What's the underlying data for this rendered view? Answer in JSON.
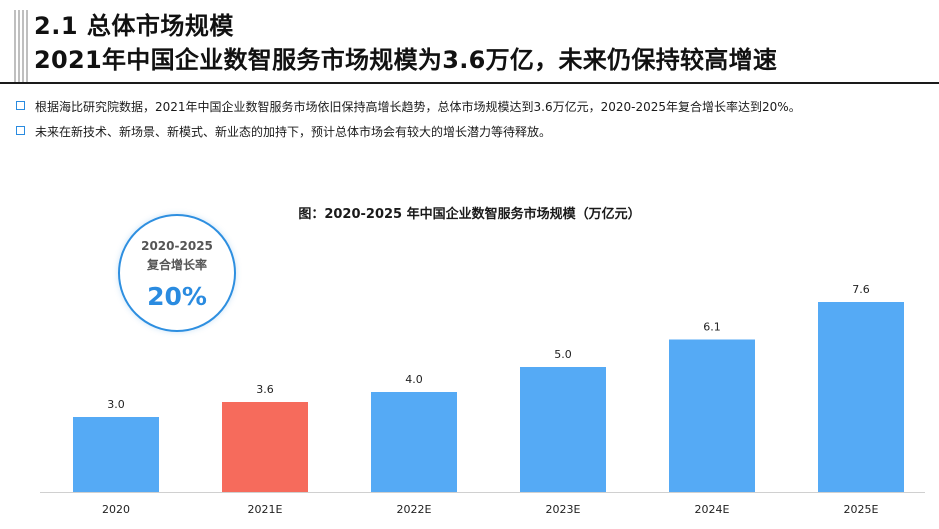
{
  "header": {
    "section_title": "2.1 总体市场规模",
    "headline": "2021年中国企业数智服务市场规模为3.6万亿，未来仍保持较高增速"
  },
  "bullets": [
    "根据海比研究院数据，2021年中国企业数智服务市场依旧保持高增长趋势，总体市场规模达到3.6万亿元，2020-2025年复合增长率达到20%。",
    "未来在新技术、新场景、新模式、新业态的加持下，预计总体市场会有较大的增长潜力等待释放。"
  ],
  "cagr": {
    "label_line1": "2020-2025",
    "label_line2": "复合增长率",
    "value": "20%"
  },
  "colors": {
    "bar_default": "#55AAF5",
    "bar_highlight": "#F66B5C",
    "accent": "#2A8BE0"
  },
  "chart_data": {
    "type": "bar",
    "title": "图：2020-2025 年中国企业数智服务市场规模（万亿元）",
    "categories": [
      "2020",
      "2021E",
      "2022E",
      "2023E",
      "2024E",
      "2025E"
    ],
    "values": [
      3.0,
      3.6,
      4.0,
      5.0,
      6.1,
      7.6
    ],
    "value_labels": [
      "3.0",
      "3.6",
      "4.0",
      "5.0",
      "6.1",
      "7.6"
    ],
    "highlight_index": 1,
    "ylim": [
      0,
      7.6
    ],
    "xlabel": "",
    "ylabel": ""
  }
}
